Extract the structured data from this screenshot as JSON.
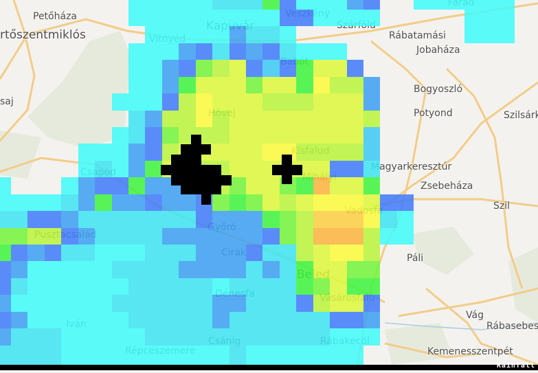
{
  "map": {
    "labels": [
      {
        "text": "Petőháza",
        "size": "normal"
      },
      {
        "text": "rtőszentmiklós",
        "size": "big"
      },
      {
        "text": "saj",
        "size": "normal"
      },
      {
        "text": "Vitnyéd",
        "size": "normal"
      },
      {
        "text": "Kapuvár",
        "size": "big"
      },
      {
        "text": "Veszkény",
        "size": "normal"
      },
      {
        "text": "Szárföld",
        "size": "normal"
      },
      {
        "text": "Rábatamási",
        "size": "normal"
      },
      {
        "text": "Jobaháza",
        "size": "normal"
      },
      {
        "text": "Babót",
        "size": "normal"
      },
      {
        "text": "Bogyoszló",
        "size": "normal"
      },
      {
        "text": "Hövej",
        "size": "normal"
      },
      {
        "text": "Potyond",
        "size": "normal"
      },
      {
        "text": "Szilsárk",
        "size": "normal"
      },
      {
        "text": "Kisfalud",
        "size": "normal"
      },
      {
        "text": "Magyarkeresztúr",
        "size": "normal"
      },
      {
        "text": "Csapod",
        "size": "normal"
      },
      {
        "text": "Mihályi",
        "size": "normal"
      },
      {
        "text": "Zsebeháza",
        "size": "normal"
      },
      {
        "text": "Vadosfa",
        "size": "normal"
      },
      {
        "text": "Szil",
        "size": "normal"
      },
      {
        "text": "Pusztacsalád",
        "size": "normal"
      },
      {
        "text": "Győró",
        "size": "normal"
      },
      {
        "text": "Cirák",
        "size": "normal"
      },
      {
        "text": "Páli",
        "size": "normal"
      },
      {
        "text": "Beled",
        "size": "big"
      },
      {
        "text": "Dénesfa",
        "size": "normal"
      },
      {
        "text": "Vásárosfalu",
        "size": "normal"
      },
      {
        "text": "Vág",
        "size": "normal"
      },
      {
        "text": "Rábasebes",
        "size": "normal"
      },
      {
        "text": "Iván",
        "size": "normal"
      },
      {
        "text": "Csánig",
        "size": "normal"
      },
      {
        "text": "Rábakecöl",
        "size": "normal"
      },
      {
        "text": "Répceszemere",
        "size": "normal"
      },
      {
        "text": "Kemenesszentpét",
        "size": "normal"
      },
      {
        "text": "Farad",
        "size": "normal"
      }
    ]
  },
  "rainfall": {
    "layer_name": "Rainfall",
    "colors": {
      "c": "#40fcfa",
      "l": "#3de4f2",
      "b": "#3cc8f4",
      "m": "#3c9ff2",
      "B": "#3f7cfa",
      "g": "#3ef43e",
      "G": "#72f53a",
      "y": "#b9f53b",
      "Y": "#dcf83c",
      "u": "#fcfa3c",
      "p": "#fccf42",
      "o": "#fab43e",
      "clutter": "#000000"
    },
    "grid": [
      "........ccccclllgBcccmB..cccccc..",
      "........cccccccccBBcccc.....ccc..",
      ".........cccccmllc..........ccc..",
      "........cccmBlBmBlccc............",
      "........ccmBGyYBbBgYYB...........",
      "........ccmgYYYGYYguyym..........",
      ".......cccByuYYYyyyYYYm..........",
      "........lmyyuyYYYYYYYYy..........",
      ".......clBGyyyYYYYYYYYb..........",
      ".....cccmByYYYYYuuyyyyb..........",
      ".....clcmgYyyyYYYYYYBBl..........",
      "c...cmBBgmmmmyGYYGgoYYg..........",
      "cccclmgmmBmmBGgGYyYuuuYBB........",
      "llBBmlllllllBmmmgGypppulc........",
      "GGyyBmllllmmmmmmBGyoooycc........",
      "gBmBllccclllmmmBllyYuuy..........",
      "BmcccccllllmmmmlmlgYYGG..........",
      "BlcccccclllllcllllgGYgg..........",
      "mccccccllllllmmlllByYYB..........",
      "BmcccccclllllmllllllBBm..........",
      "mlllccccclllllllllllccc..........",
      "llllcccccccccclccccccc...........",
      "llllcccccccccclccccccc..........."
    ]
  }
}
